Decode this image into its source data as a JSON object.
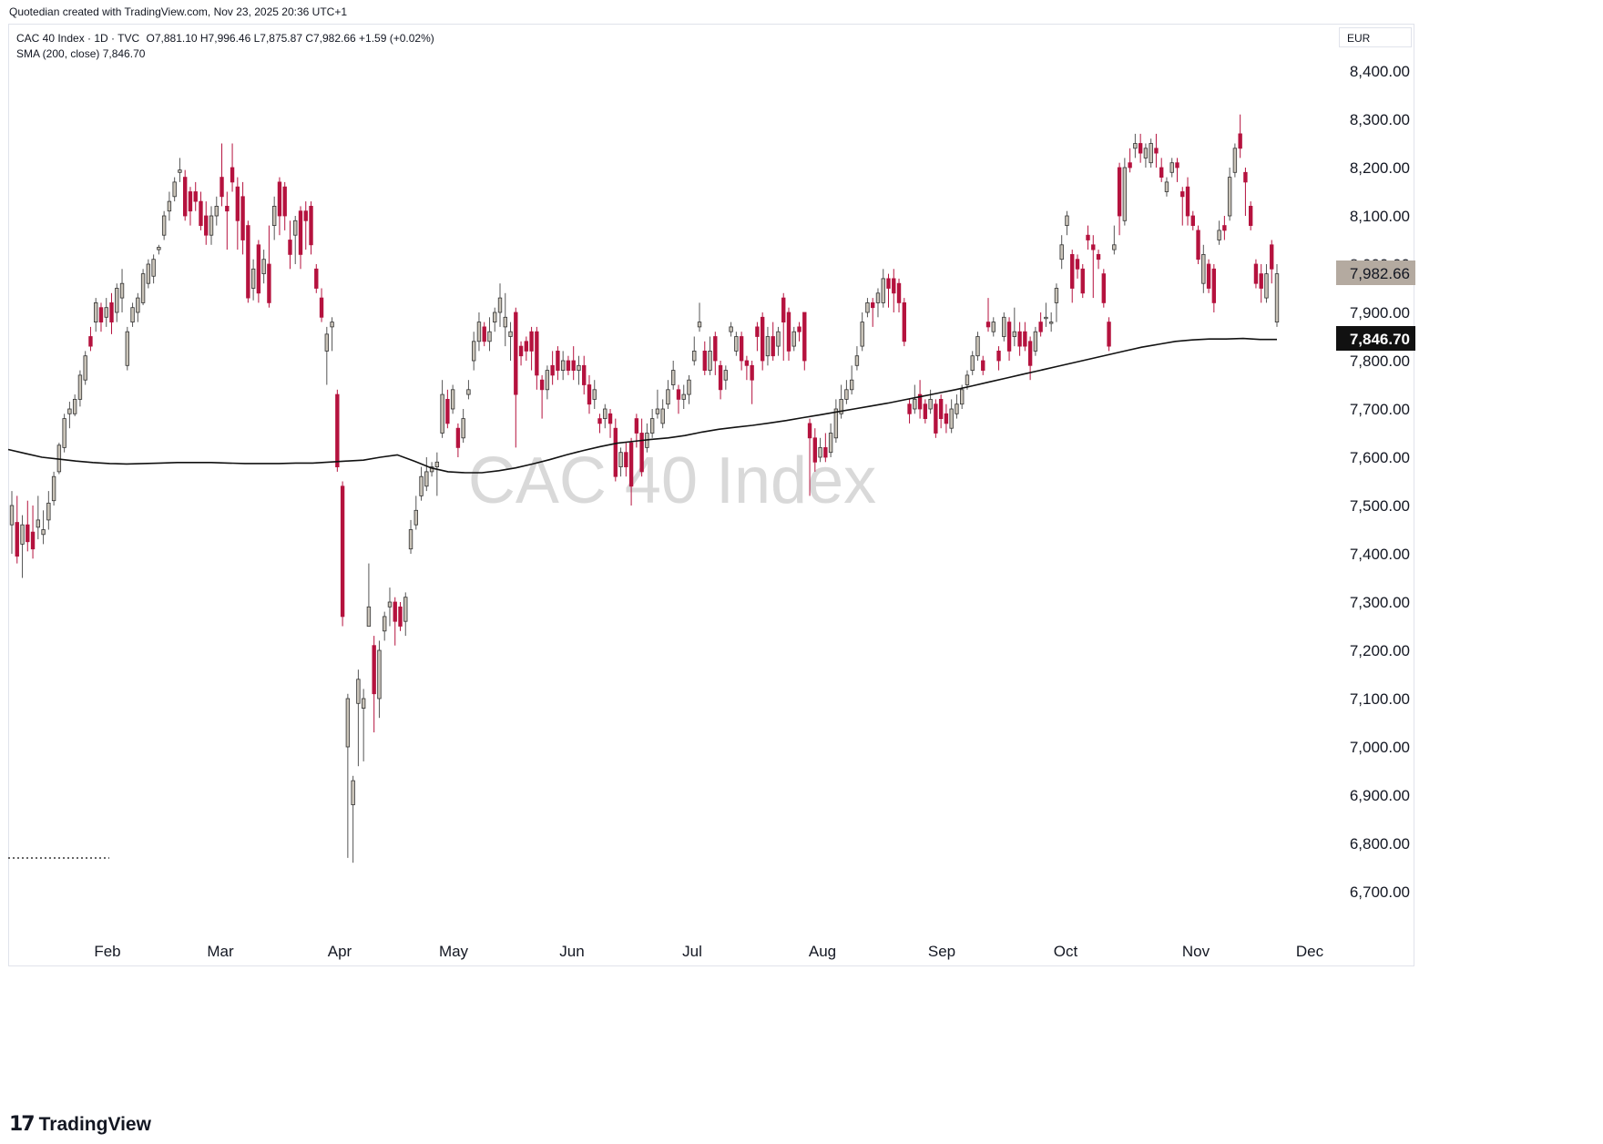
{
  "header": {
    "byline": "Quotedian created with TradingView.com, Nov 23, 2025 20:36 UTC+1"
  },
  "legend": {
    "symbol": "CAC 40 Index · 1D · TVC",
    "ohlc": "O7,881.10  H7,996.46  L7,875.87  C7,982.66  +1.59 (+0.02%)",
    "sma": "SMA (200, close)  7,846.70"
  },
  "currency": "EUR",
  "footer": {
    "logo_mark": "17",
    "logo_text": "TradingView"
  },
  "chart_data": {
    "type": "candlestick",
    "watermark": "CAC 40 Index",
    "ylim": [
      6610,
      8500
    ],
    "y_ticks": [
      "6,700.00",
      "6,800.00",
      "6,900.00",
      "7,000.00",
      "7,100.00",
      "7,200.00",
      "7,300.00",
      "7,400.00",
      "7,500.00",
      "7,600.00",
      "7,700.00",
      "7,800.00",
      "7,900.00",
      "8,000.00",
      "8,100.00",
      "8,200.00",
      "8,300.00",
      "8,400.00"
    ],
    "x_ticks": [
      "Feb",
      "Mar",
      "Apr",
      "May",
      "Jun",
      "Jul",
      "Aug",
      "Sep",
      "Oct",
      "Nov",
      "Dec"
    ],
    "price_label": "7,982.66",
    "sma_label": "7,846.70",
    "colors": {
      "up": "#c9c3b8",
      "down": "#b5123e",
      "wick_up": "#555555",
      "wick_down": "#b5123e",
      "sma": "#111111",
      "price_label_bg": "#b4aaa0",
      "sma_label_bg": "#111111"
    },
    "candles": [
      [
        7460,
        7500,
        7400,
        7530
      ],
      [
        7465,
        7395,
        7380,
        7520
      ],
      [
        7420,
        7460,
        7350,
        7480
      ],
      [
        7460,
        7425,
        7405,
        7510
      ],
      [
        7445,
        7410,
        7390,
        7500
      ],
      [
        7455,
        7470,
        7430,
        7520
      ],
      [
        7440,
        7450,
        7420,
        7490
      ],
      [
        7470,
        7505,
        7450,
        7530
      ],
      [
        7510,
        7560,
        7500,
        7570
      ],
      [
        7570,
        7625,
        7565,
        7630
      ],
      [
        7620,
        7680,
        7610,
        7690
      ],
      [
        7690,
        7700,
        7660,
        7715
      ],
      [
        7690,
        7720,
        7685,
        7730
      ],
      [
        7720,
        7770,
        7705,
        7780
      ],
      [
        7760,
        7810,
        7750,
        7820
      ],
      [
        7850,
        7830,
        7820,
        7870
      ],
      [
        7880,
        7920,
        7860,
        7930
      ],
      [
        7910,
        7880,
        7860,
        7920
      ],
      [
        7890,
        7910,
        7870,
        7930
      ],
      [
        7920,
        7880,
        7855,
        7940
      ],
      [
        7900,
        7950,
        7880,
        7960
      ],
      [
        7930,
        7960,
        7900,
        7990
      ],
      [
        7790,
        7860,
        7780,
        7870
      ],
      [
        7880,
        7910,
        7870,
        7920
      ],
      [
        7900,
        7930,
        7880,
        7940
      ],
      [
        7920,
        7980,
        7915,
        7990
      ],
      [
        7960,
        8000,
        7950,
        8010
      ],
      [
        7975,
        8010,
        7960,
        8020
      ],
      [
        8030,
        8035,
        8020,
        8040
      ],
      [
        8060,
        8100,
        8050,
        8110
      ],
      [
        8110,
        8130,
        8090,
        8150
      ],
      [
        8140,
        8170,
        8130,
        8180
      ],
      [
        8190,
        8195,
        8170,
        8220
      ],
      [
        8180,
        8100,
        8090,
        8195
      ],
      [
        8150,
        8110,
        8080,
        8160
      ],
      [
        8150,
        8130,
        8110,
        8170
      ],
      [
        8130,
        8080,
        8070,
        8150
      ],
      [
        8100,
        8060,
        8040,
        8130
      ],
      [
        8060,
        8100,
        8040,
        8120
      ],
      [
        8100,
        8120,
        8080,
        8140
      ],
      [
        8180,
        8140,
        8120,
        8250
      ],
      [
        8120,
        8110,
        8030,
        8150
      ],
      [
        8200,
        8170,
        8150,
        8250
      ],
      [
        8160,
        8090,
        8030,
        8180
      ],
      [
        8140,
        8050,
        8020,
        8170
      ],
      [
        8080,
        7930,
        7920,
        8090
      ],
      [
        7950,
        7990,
        7925,
        8010
      ],
      [
        8040,
        7940,
        7920,
        8050
      ],
      [
        7980,
        8010,
        7960,
        8030
      ],
      [
        8000,
        7920,
        7910,
        8080
      ],
      [
        8080,
        8120,
        8050,
        8140
      ],
      [
        8170,
        8100,
        8060,
        8180
      ],
      [
        8160,
        8100,
        8070,
        8170
      ],
      [
        8050,
        8020,
        7990,
        8090
      ],
      [
        8060,
        8090,
        8000,
        8100
      ],
      [
        8110,
        8020,
        7990,
        8120
      ],
      [
        8110,
        8090,
        8030,
        8130
      ],
      [
        8120,
        8040,
        8020,
        8130
      ],
      [
        7990,
        7950,
        7940,
        8000
      ],
      [
        7930,
        7890,
        7880,
        7950
      ],
      [
        7820,
        7855,
        7750,
        7870
      ],
      [
        7870,
        7880,
        7820,
        7890
      ],
      [
        7730,
        7580,
        7570,
        7740
      ],
      [
        7540,
        7270,
        7250,
        7550
      ],
      [
        7000,
        7100,
        6770,
        7110
      ],
      [
        6880,
        6930,
        6760,
        6940
      ],
      [
        7090,
        7140,
        6960,
        7160
      ],
      [
        7080,
        7100,
        6970,
        7120
      ],
      [
        7250,
        7290,
        7260,
        7380
      ],
      [
        7210,
        7110,
        7030,
        7230
      ],
      [
        7100,
        7200,
        7060,
        7220
      ],
      [
        7240,
        7270,
        7220,
        7280
      ],
      [
        7290,
        7300,
        7250,
        7330
      ],
      [
        7300,
        7260,
        7210,
        7310
      ],
      [
        7290,
        7250,
        7240,
        7300
      ],
      [
        7260,
        7310,
        7230,
        7320
      ],
      [
        7410,
        7450,
        7400,
        7470
      ],
      [
        7460,
        7490,
        7450,
        7520
      ],
      [
        7520,
        7560,
        7510,
        7580
      ],
      [
        7540,
        7570,
        7530,
        7600
      ],
      [
        7570,
        7580,
        7560,
        7590
      ],
      [
        7580,
        7590,
        7520,
        7610
      ],
      [
        7650,
        7730,
        7640,
        7760
      ],
      [
        7720,
        7670,
        7660,
        7740
      ],
      [
        7700,
        7740,
        7690,
        7750
      ],
      [
        7660,
        7620,
        7600,
        7670
      ],
      [
        7640,
        7680,
        7630,
        7700
      ],
      [
        7730,
        7740,
        7720,
        7760
      ],
      [
        7800,
        7840,
        7780,
        7860
      ],
      [
        7840,
        7880,
        7820,
        7900
      ],
      [
        7870,
        7840,
        7830,
        7880
      ],
      [
        7840,
        7860,
        7820,
        7890
      ],
      [
        7880,
        7900,
        7860,
        7910
      ],
      [
        7900,
        7930,
        7870,
        7960
      ],
      [
        7870,
        7890,
        7830,
        7940
      ],
      [
        7850,
        7860,
        7800,
        7880
      ],
      [
        7900,
        7730,
        7620,
        7910
      ],
      [
        7830,
        7810,
        7790,
        7840
      ],
      [
        7840,
        7820,
        7800,
        7850
      ],
      [
        7860,
        7820,
        7780,
        7870
      ],
      [
        7860,
        7770,
        7740,
        7870
      ],
      [
        7760,
        7740,
        7680,
        7770
      ],
      [
        7740,
        7780,
        7720,
        7790
      ],
      [
        7790,
        7770,
        7750,
        7820
      ],
      [
        7820,
        7780,
        7760,
        7830
      ],
      [
        7780,
        7800,
        7760,
        7820
      ],
      [
        7800,
        7780,
        7770,
        7810
      ],
      [
        7800,
        7780,
        7760,
        7830
      ],
      [
        7780,
        7790,
        7750,
        7810
      ],
      [
        7790,
        7750,
        7730,
        7810
      ],
      [
        7750,
        7710,
        7690,
        7770
      ],
      [
        7720,
        7740,
        7700,
        7760
      ],
      [
        7680,
        7670,
        7650,
        7690
      ],
      [
        7680,
        7700,
        7660,
        7710
      ],
      [
        7690,
        7670,
        7640,
        7700
      ],
      [
        7660,
        7560,
        7550,
        7680
      ],
      [
        7580,
        7610,
        7560,
        7620
      ],
      [
        7610,
        7580,
        7560,
        7630
      ],
      [
        7630,
        7540,
        7500,
        7640
      ],
      [
        7680,
        7650,
        7620,
        7690
      ],
      [
        7650,
        7570,
        7560,
        7680
      ],
      [
        7620,
        7650,
        7610,
        7670
      ],
      [
        7650,
        7680,
        7640,
        7700
      ],
      [
        7690,
        7700,
        7680,
        7740
      ],
      [
        7670,
        7700,
        7660,
        7720
      ],
      [
        7710,
        7740,
        7700,
        7760
      ],
      [
        7750,
        7780,
        7740,
        7800
      ],
      [
        7740,
        7720,
        7690,
        7750
      ],
      [
        7720,
        7730,
        7700,
        7750
      ],
      [
        7730,
        7760,
        7710,
        7770
      ],
      [
        7800,
        7820,
        7790,
        7850
      ],
      [
        7870,
        7880,
        7860,
        7920
      ],
      [
        7820,
        7780,
        7770,
        7840
      ],
      [
        7780,
        7820,
        7770,
        7850
      ],
      [
        7850,
        7800,
        7770,
        7860
      ],
      [
        7790,
        7740,
        7720,
        7800
      ],
      [
        7760,
        7780,
        7740,
        7790
      ],
      [
        7860,
        7870,
        7850,
        7880
      ],
      [
        7820,
        7850,
        7810,
        7860
      ],
      [
        7850,
        7800,
        7780,
        7860
      ],
      [
        7800,
        7790,
        7760,
        7810
      ],
      [
        7790,
        7760,
        7710,
        7800
      ],
      [
        7870,
        7850,
        7820,
        7880
      ],
      [
        7890,
        7800,
        7780,
        7900
      ],
      [
        7810,
        7850,
        7790,
        7870
      ],
      [
        7850,
        7810,
        7800,
        7880
      ],
      [
        7830,
        7860,
        7810,
        7870
      ],
      [
        7930,
        7880,
        7800,
        7940
      ],
      [
        7900,
        7820,
        7800,
        7910
      ],
      [
        7830,
        7860,
        7820,
        7870
      ],
      [
        7870,
        7860,
        7840,
        7880
      ],
      [
        7900,
        7800,
        7780,
        7900
      ],
      [
        7670,
        7640,
        7520,
        7680
      ],
      [
        7640,
        7590,
        7570,
        7660
      ],
      [
        7600,
        7620,
        7590,
        7640
      ],
      [
        7620,
        7600,
        7590,
        7650
      ],
      [
        7610,
        7650,
        7600,
        7670
      ],
      [
        7640,
        7700,
        7630,
        7720
      ],
      [
        7690,
        7720,
        7680,
        7750
      ],
      [
        7720,
        7740,
        7710,
        7760
      ],
      [
        7740,
        7760,
        7730,
        7790
      ],
      [
        7790,
        7810,
        7780,
        7830
      ],
      [
        7830,
        7880,
        7820,
        7900
      ],
      [
        7900,
        7920,
        7890,
        7930
      ],
      [
        7920,
        7910,
        7870,
        7930
      ],
      [
        7920,
        7940,
        7890,
        7950
      ],
      [
        7920,
        7970,
        7910,
        7990
      ],
      [
        7970,
        7950,
        7910,
        7980
      ],
      [
        7970,
        7940,
        7900,
        7990
      ],
      [
        7960,
        7920,
        7900,
        7970
      ],
      [
        7920,
        7840,
        7830,
        7930
      ],
      [
        7710,
        7690,
        7670,
        7720
      ],
      [
        7700,
        7720,
        7690,
        7750
      ],
      [
        7730,
        7700,
        7680,
        7760
      ],
      [
        7710,
        7680,
        7670,
        7720
      ],
      [
        7700,
        7720,
        7690,
        7740
      ],
      [
        7710,
        7650,
        7640,
        7720
      ],
      [
        7720,
        7680,
        7660,
        7730
      ],
      [
        7690,
        7670,
        7650,
        7710
      ],
      [
        7660,
        7700,
        7650,
        7720
      ],
      [
        7690,
        7710,
        7680,
        7730
      ],
      [
        7710,
        7740,
        7700,
        7750
      ],
      [
        7750,
        7770,
        7740,
        7780
      ],
      [
        7780,
        7810,
        7770,
        7820
      ],
      [
        7810,
        7850,
        7800,
        7860
      ],
      [
        7800,
        7780,
        7770,
        7810
      ],
      [
        7880,
        7870,
        7860,
        7930
      ],
      [
        7860,
        7880,
        7850,
        7890
      ],
      [
        7820,
        7800,
        7780,
        7830
      ],
      [
        7850,
        7890,
        7840,
        7900
      ],
      [
        7880,
        7820,
        7800,
        7890
      ],
      [
        7850,
        7860,
        7830,
        7910
      ],
      [
        7860,
        7830,
        7810,
        7880
      ],
      [
        7860,
        7830,
        7820,
        7880
      ],
      [
        7840,
        7790,
        7760,
        7850
      ],
      [
        7820,
        7860,
        7810,
        7870
      ],
      [
        7880,
        7860,
        7850,
        7900
      ],
      [
        7890,
        7890,
        7870,
        7920
      ],
      [
        7880,
        7880,
        7860,
        7900
      ],
      [
        7920,
        7950,
        7880,
        7960
      ],
      [
        8010,
        8040,
        7990,
        8060
      ],
      [
        8080,
        8100,
        8060,
        8110
      ],
      [
        8020,
        7950,
        7920,
        8030
      ],
      [
        8010,
        7990,
        7970,
        8020
      ],
      [
        7990,
        7940,
        7930,
        8000
      ],
      [
        8060,
        8050,
        8030,
        8080
      ],
      [
        8040,
        8030,
        7930,
        8060
      ],
      [
        8020,
        8010,
        7990,
        8030
      ],
      [
        7980,
        7920,
        7910,
        7990
      ],
      [
        7880,
        7830,
        7820,
        7890
      ],
      [
        8030,
        8040,
        8020,
        8080
      ],
      [
        8200,
        8100,
        8060,
        8210
      ],
      [
        8090,
        8200,
        8080,
        8220
      ],
      [
        8210,
        8200,
        8190,
        8240
      ],
      [
        8240,
        8250,
        8220,
        8270
      ],
      [
        8250,
        8230,
        8210,
        8270
      ],
      [
        8220,
        8240,
        8200,
        8250
      ],
      [
        8210,
        8250,
        8200,
        8260
      ],
      [
        8240,
        8230,
        8200,
        8270
      ],
      [
        8200,
        8180,
        8170,
        8220
      ],
      [
        8150,
        8170,
        8140,
        8180
      ],
      [
        8190,
        8210,
        8180,
        8220
      ],
      [
        8210,
        8200,
        8170,
        8220
      ],
      [
        8150,
        8140,
        8080,
        8160
      ],
      [
        8160,
        8100,
        8080,
        8180
      ],
      [
        8100,
        8080,
        8070,
        8110
      ],
      [
        8070,
        8010,
        8000,
        8080
      ],
      [
        7960,
        8020,
        7940,
        8040
      ],
      [
        8000,
        7950,
        7940,
        8010
      ],
      [
        7990,
        7920,
        7900,
        8000
      ],
      [
        8050,
        8070,
        8040,
        8090
      ],
      [
        8080,
        8070,
        8050,
        8100
      ],
      [
        8100,
        8180,
        8090,
        8200
      ],
      [
        8190,
        8240,
        8180,
        8250
      ],
      [
        8270,
        8240,
        8220,
        8310
      ],
      [
        8190,
        8170,
        8100,
        8200
      ],
      [
        8120,
        8080,
        8070,
        8130
      ],
      [
        8000,
        7960,
        7950,
        8010
      ],
      [
        7980,
        7950,
        7920,
        8000
      ],
      [
        7930,
        7980,
        7920,
        8000
      ],
      [
        8040,
        7990,
        7960,
        8050
      ],
      [
        7880,
        7980,
        7870,
        8000
      ]
    ],
    "sma": [
      7616,
      7608,
      7600,
      7596,
      7592,
      7589,
      7587,
      7586,
      7587,
      7588,
      7589,
      7589,
      7589,
      7588,
      7587,
      7587,
      7587,
      7588,
      7588,
      7590,
      7592,
      7594,
      7600,
      7605,
      7592,
      7578,
      7570,
      7568,
      7568,
      7572,
      7578,
      7586,
      7595,
      7605,
      7614,
      7622,
      7629,
      7633,
      7637,
      7640,
      7645,
      7652,
      7658,
      7662,
      7666,
      7671,
      7676,
      7682,
      7688,
      7694,
      7700,
      7706,
      7712,
      7719,
      7726,
      7733,
      7740,
      7748,
      7756,
      7764,
      7772,
      7780,
      7788,
      7796,
      7804,
      7812,
      7820,
      7828,
      7834,
      7840,
      7843,
      7845,
      7845,
      7846,
      7844,
      7844
    ]
  }
}
